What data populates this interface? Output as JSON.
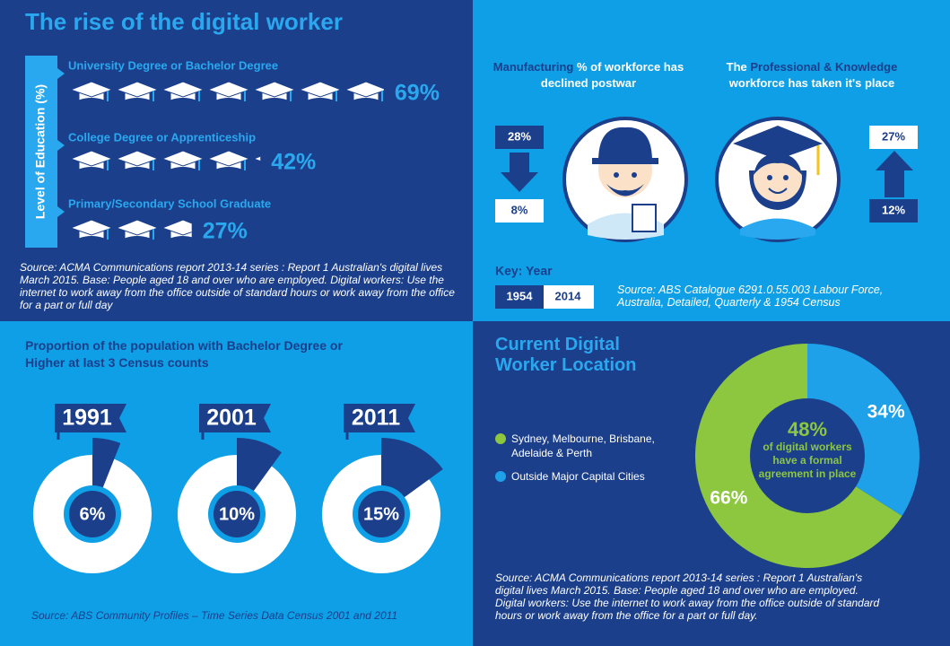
{
  "title": "The rise of the digital worker",
  "education": {
    "axis_label": "Level of Education (%)",
    "rows": [
      {
        "label": "University Degree or Bachelor Degree",
        "value": 69,
        "value_label": "69%"
      },
      {
        "label": "College Degree or Apprenticeship",
        "value": 42,
        "value_label": "42%"
      },
      {
        "label": "Primary/Secondary School Graduate",
        "value": 27,
        "value_label": "27%"
      }
    ],
    "source": "Source: ACMA Communications report 2013-14 series : Report 1 Australian's digital lives March 2015. Base: People aged 18 and over who are employed. Digital workers: Use the internet to work away from the office outside of standard hours or work away from the office for a part or full day"
  },
  "workforce": {
    "groups": [
      {
        "heading": [
          {
            "text": "Manufacturing",
            "highlight": true
          },
          {
            "text": "% of workforce has declined postwar"
          }
        ],
        "values": [
          28,
          8
        ],
        "value_labels": [
          "28%",
          "8%"
        ]
      },
      {
        "heading": [
          {
            "text": "The"
          },
          {
            "text": "Professional & Knowledge",
            "highlight": true
          },
          {
            "text": "workforce has taken it's place"
          }
        ],
        "values": [
          12,
          27
        ],
        "value_labels": [
          "12%",
          "27%"
        ]
      }
    ],
    "key": {
      "label": "Key: Year",
      "years": [
        1954,
        2014
      ]
    },
    "source": "Source: ABS Catalogue 6291.0.55.003 Labour Force, Australia, Detailed, Quarterly & 1954 Census"
  },
  "census": {
    "title": "Proportion of the population with Bachelor Degree or Higher at last 3 Census counts",
    "items": [
      {
        "year": 1991,
        "value": 6,
        "value_label": "6%"
      },
      {
        "year": 2001,
        "value": 10,
        "value_label": "10%"
      },
      {
        "year": 2011,
        "value": 15,
        "value_label": "15%"
      }
    ],
    "source": "Source: ABS Community Profiles – Time Series Data Census 2001 and 2011"
  },
  "location": {
    "title": "Current Digital Worker Location",
    "segments": [
      {
        "name": "Sydney, Melbourne, Brisbane, Adelaide & Perth",
        "value": 66,
        "value_label": "66%",
        "color": "#8dc63f"
      },
      {
        "name": "Outside Major Capital Cities",
        "value": 34,
        "value_label": "34%",
        "color": "#1ea1e8"
      }
    ],
    "center_value": 48,
    "center_value_label": "48%",
    "center_text": "of digital workers have a formal agreement in place",
    "source": "Source: ACMA Communications report 2013-14 series : Report 1 Australian's digital lives March 2015. Base: People aged 18 and over who are employed. Digital workers:  Use the internet to work away from the office outside of standard hours or work away from the office for a part or full day."
  }
}
